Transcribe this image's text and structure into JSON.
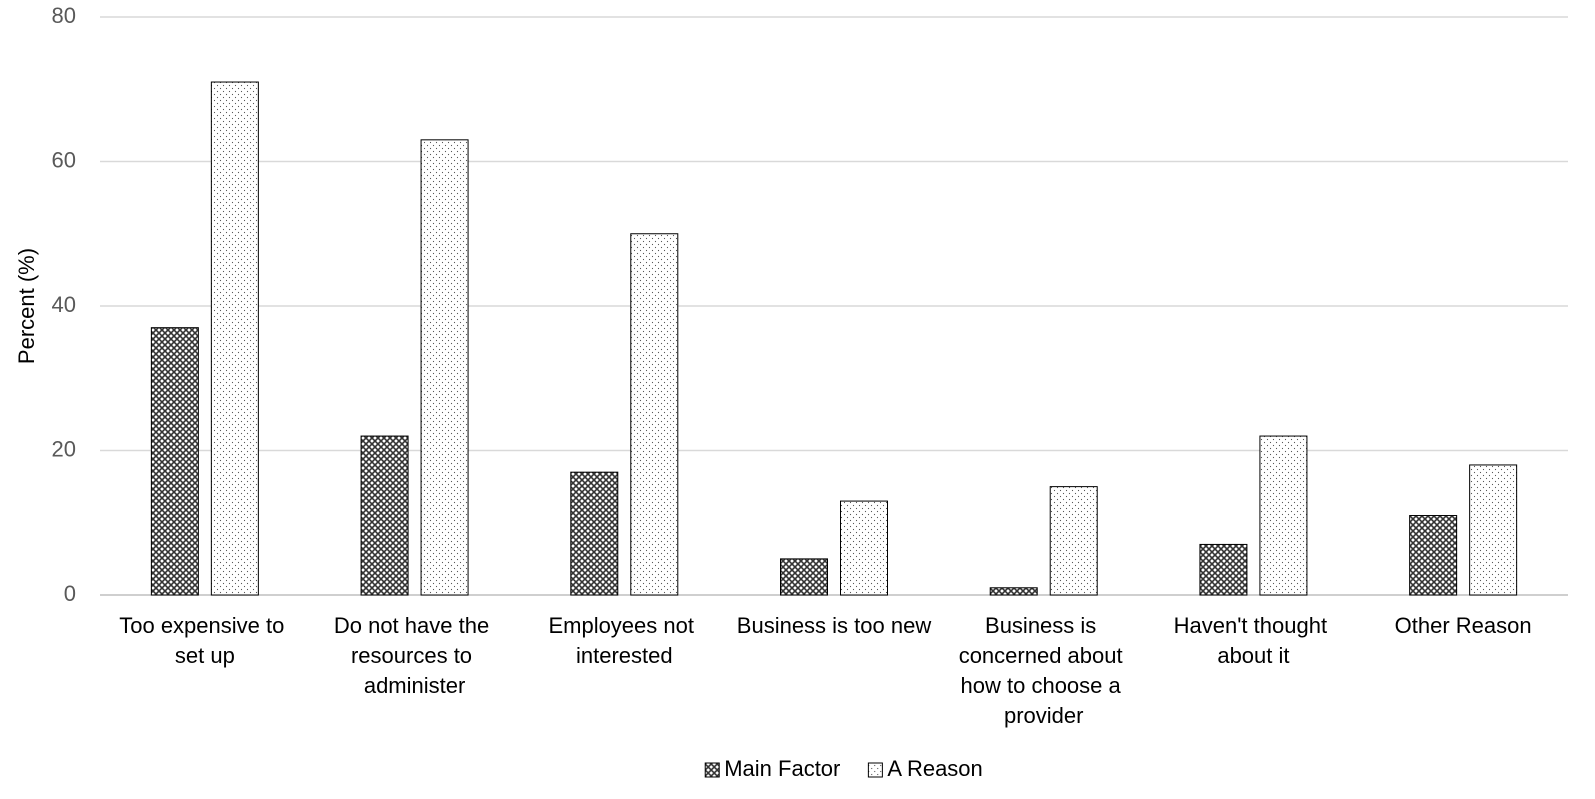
{
  "chart_data": {
    "type": "bar",
    "y_label": "Percent (%)",
    "categories": [
      "Too expensive to set up",
      "Do not have the resources to administer",
      "Employees not interested",
      "Business is too new",
      "Business is concerned about how to choose a provider",
      "Haven't thought about it",
      "Other Reason"
    ],
    "series": [
      {
        "name": "Main Factor",
        "color": "#333333",
        "pattern": "crosshatch",
        "values": [
          37,
          22,
          17,
          5,
          1,
          7,
          11
        ]
      },
      {
        "name": "A Reason",
        "color": "#555555",
        "pattern": "dots",
        "values": [
          71,
          63,
          50,
          13,
          15,
          22,
          18
        ]
      }
    ],
    "ylim": [
      0,
      80
    ],
    "yticks": [
      0,
      20,
      40,
      60,
      80
    ],
    "grid": true,
    "legend": "bottom"
  }
}
